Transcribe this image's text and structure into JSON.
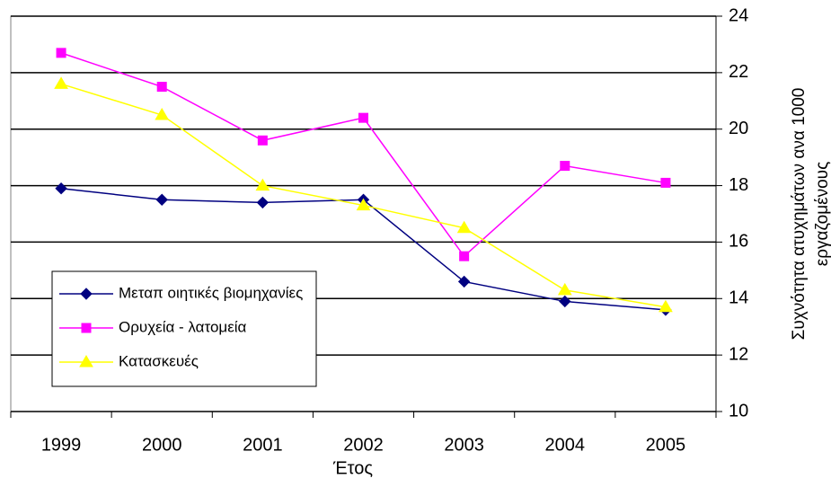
{
  "chart_data": {
    "type": "line",
    "x_label": "Έτος",
    "y_label_lines": [
      "Συχνότητα ατυχημάτων ανα 1000",
      "εργαζομένους"
    ],
    "categories": [
      "1999",
      "2000",
      "2001",
      "2002",
      "2003",
      "2004",
      "2005"
    ],
    "series": [
      {
        "name": "Μεταπ οιητικές βιομηχανίες",
        "color": "#000080",
        "marker": "diamond",
        "values": [
          17.9,
          17.5,
          17.4,
          17.5,
          14.6,
          13.9,
          13.6
        ]
      },
      {
        "name": "Ορυχεία - λατομεία",
        "color": "#ff00ff",
        "marker": "square",
        "values": [
          22.7,
          21.5,
          19.6,
          20.4,
          15.5,
          18.7,
          18.1
        ]
      },
      {
        "name": "Κατασκευές",
        "color": "#ffff00",
        "marker": "triangle",
        "values": [
          21.6,
          20.5,
          18.0,
          17.3,
          16.5,
          14.3,
          13.7
        ]
      }
    ],
    "ylim": [
      10,
      24
    ],
    "yticks": [
      10,
      12,
      14,
      16,
      18,
      20,
      22,
      24
    ],
    "y_axis_side": "right",
    "grid": true,
    "legend": "lower left"
  }
}
